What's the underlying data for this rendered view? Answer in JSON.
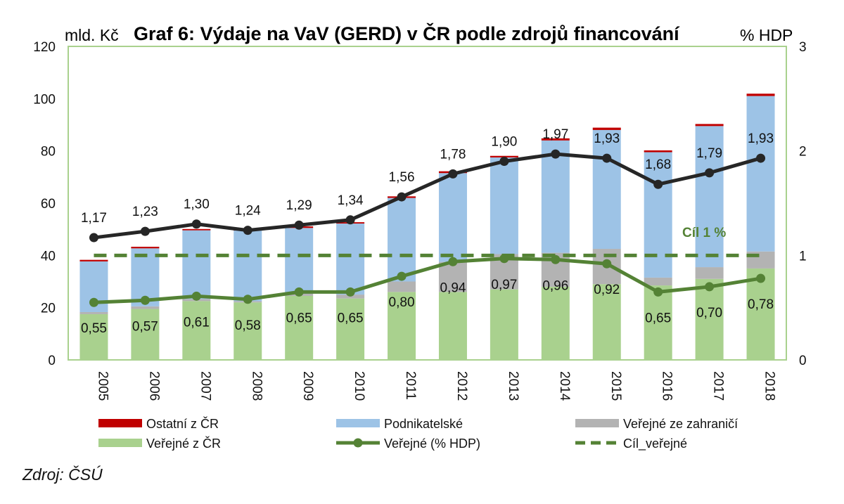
{
  "chart_data": {
    "type": "bar",
    "stacked": true,
    "title": "Graf 6: Výdaje na VaV (GERD) v ČR podle zdrojů financování",
    "ylabel": "mld. Kč",
    "y2label": "% HDP",
    "ylim": [
      0,
      120
    ],
    "yticks": [
      "0",
      "20",
      "40",
      "60",
      "80",
      "100",
      "120"
    ],
    "y2lim": [
      0,
      3
    ],
    "y2ticks": [
      "0",
      "1",
      "2",
      "3"
    ],
    "categories": [
      "2005",
      "2006",
      "2007",
      "2008",
      "2009",
      "2010",
      "2011",
      "2012",
      "2013",
      "2014",
      "2015",
      "2016",
      "2017",
      "2018"
    ],
    "series": [
      {
        "name": "Veřejné z ČR",
        "kind": "bar",
        "color": "#a9d18e",
        "values": [
          17.5,
          19.5,
          22.5,
          22.0,
          24.5,
          23.5,
          26.0,
          26.0,
          27.0,
          28.0,
          29.0,
          28.5,
          31.0,
          35.0
        ]
      },
      {
        "name": "Veřejné ze zahraničí",
        "kind": "bar",
        "color": "#b3b3b3",
        "values": [
          0.8,
          1.0,
          0.8,
          0.5,
          0.8,
          1.5,
          4.0,
          11.5,
          13.5,
          13.0,
          13.5,
          3.0,
          4.5,
          6.5
        ]
      },
      {
        "name": "Podnikatelské",
        "kind": "bar",
        "color": "#9dc3e6",
        "values": [
          19.4,
          22.2,
          26.3,
          27.0,
          25.2,
          27.2,
          32.0,
          34.0,
          37.0,
          43.0,
          45.5,
          48.0,
          54.0,
          59.5
        ]
      },
      {
        "name": "Ostatní z ČR",
        "kind": "bar",
        "color": "#c00000",
        "values": [
          0.6,
          0.6,
          0.5,
          0.5,
          0.6,
          0.5,
          0.6,
          0.7,
          0.6,
          0.8,
          0.9,
          0.7,
          0.8,
          0.9
        ]
      },
      {
        "name": "Veřejné (% HDP)",
        "kind": "line",
        "axis": "y2",
        "color": "#548235",
        "values": [
          0.55,
          0.57,
          0.61,
          0.58,
          0.65,
          0.65,
          0.8,
          0.94,
          0.97,
          0.96,
          0.92,
          0.65,
          0.7,
          0.78
        ],
        "labels": [
          "0,55",
          "0,57",
          "0,61",
          "0,58",
          "0,65",
          "0,65",
          "0,80",
          "0,94",
          "0,97",
          "0,96",
          "0,92",
          "0,65",
          "0,70",
          "0,78"
        ]
      },
      {
        "name": "",
        "kind": "line",
        "axis": "y2",
        "color": "#262626",
        "in_legend": false,
        "values": [
          1.17,
          1.23,
          1.3,
          1.24,
          1.29,
          1.34,
          1.56,
          1.78,
          1.9,
          1.97,
          1.93,
          1.68,
          1.79,
          1.93
        ],
        "labels": [
          "1,17",
          "1,23",
          "1,30",
          "1,24",
          "1,29",
          "1,34",
          "1,56",
          "1,78",
          "1,90",
          "1,97",
          "1,93",
          "1,68",
          "1,79",
          "1,93"
        ]
      },
      {
        "name": "Cíl_veřejné",
        "kind": "dashed-line",
        "axis": "y2",
        "color": "#548235",
        "value": 1
      }
    ],
    "goal_label": "Cíl 1 %",
    "legend_position": "bottom",
    "legend_order": [
      "Ostatní z ČR",
      "Podnikatelské",
      "Veřejné ze zahraničí",
      "Veřejné z ČR",
      "Veřejné (% HDP)",
      "Cíl_veřejné"
    ],
    "plot_border_color": "#a9d18e"
  },
  "source": "Zdroj: ČSÚ"
}
